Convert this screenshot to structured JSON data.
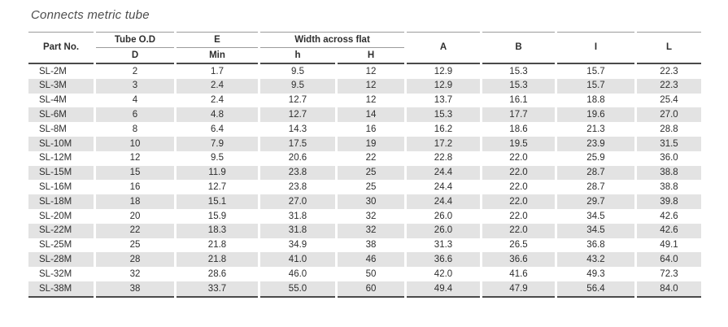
{
  "title": "Connects metric tube",
  "colors": {
    "row_alt_bg": "#e3e3e3",
    "rule_dark": "#4a4a4a",
    "rule_light": "#9c9c9c",
    "text": "#2e2e2e",
    "title_text": "#4d4d4d"
  },
  "table": {
    "header": {
      "part_no": "Part No.",
      "tube_od": "Tube O.D",
      "e": "E",
      "width_across_flat": "Width across flat",
      "d": "D",
      "min": "Min",
      "h_lower": "h",
      "h_upper": "H",
      "a": "A",
      "b": "B",
      "i": "I",
      "l": "L"
    },
    "rows": [
      [
        "SL-2M",
        "2",
        "1.7",
        "9.5",
        "12",
        "12.9",
        "15.3",
        "15.7",
        "22.3"
      ],
      [
        "SL-3M",
        "3",
        "2.4",
        "9.5",
        "12",
        "12.9",
        "15.3",
        "15.7",
        "22.3"
      ],
      [
        "SL-4M",
        "4",
        "2.4",
        "12.7",
        "12",
        "13.7",
        "16.1",
        "18.8",
        "25.4"
      ],
      [
        "SL-6M",
        "6",
        "4.8",
        "12.7",
        "14",
        "15.3",
        "17.7",
        "19.6",
        "27.0"
      ],
      [
        "SL-8M",
        "8",
        "6.4",
        "14.3",
        "16",
        "16.2",
        "18.6",
        "21.3",
        "28.8"
      ],
      [
        "SL-10M",
        "10",
        "7.9",
        "17.5",
        "19",
        "17.2",
        "19.5",
        "23.9",
        "31.5"
      ],
      [
        "SL-12M",
        "12",
        "9.5",
        "20.6",
        "22",
        "22.8",
        "22.0",
        "25.9",
        "36.0"
      ],
      [
        "SL-15M",
        "15",
        "11.9",
        "23.8",
        "25",
        "24.4",
        "22.0",
        "28.7",
        "38.8"
      ],
      [
        "SL-16M",
        "16",
        "12.7",
        "23.8",
        "25",
        "24.4",
        "22.0",
        "28.7",
        "38.8"
      ],
      [
        "SL-18M",
        "18",
        "15.1",
        "27.0",
        "30",
        "24.4",
        "22.0",
        "29.7",
        "39.8"
      ],
      [
        "SL-20M",
        "20",
        "15.9",
        "31.8",
        "32",
        "26.0",
        "22.0",
        "34.5",
        "42.6"
      ],
      [
        "SL-22M",
        "22",
        "18.3",
        "31.8",
        "32",
        "26.0",
        "22.0",
        "34.5",
        "42.6"
      ],
      [
        "SL-25M",
        "25",
        "21.8",
        "34.9",
        "38",
        "31.3",
        "26.5",
        "36.8",
        "49.1"
      ],
      [
        "SL-28M",
        "28",
        "21.8",
        "41.0",
        "46",
        "36.6",
        "36.6",
        "43.2",
        "64.0"
      ],
      [
        "SL-32M",
        "32",
        "28.6",
        "46.0",
        "50",
        "42.0",
        "41.6",
        "49.3",
        "72.3"
      ],
      [
        "SL-38M",
        "38",
        "33.7",
        "55.0",
        "60",
        "49.4",
        "47.9",
        "56.4",
        "84.0"
      ]
    ]
  }
}
